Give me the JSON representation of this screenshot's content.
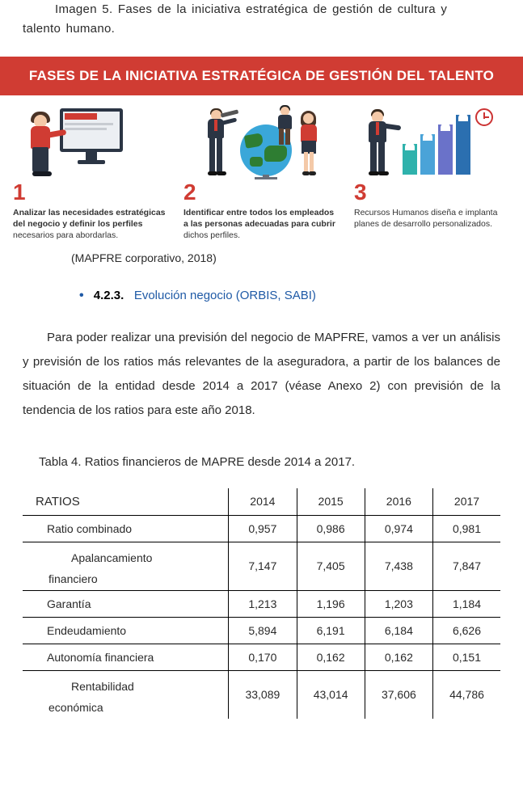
{
  "caption_top_pre": "Imagen 5. Fases de la iniciativa estratégica de gestión de cultura y",
  "caption_top_post": "talento humano.",
  "infographic": {
    "banner": "FASES DE LA INICIATIVA ESTRATÉGICA DE GESTIÓN DEL TALENTO",
    "banner_bg": "#d03c33",
    "phases": [
      {
        "num": "1",
        "bold": "Analizar las necesidades estratégicas del negocio y definir los perfiles",
        "rest": " necesarios para abordarlas."
      },
      {
        "num": "2",
        "bold": "Identificar entre todos los empleados a las personas adecuadas para cubrir",
        "rest": " dichos perfiles."
      },
      {
        "num": "3",
        "bold": "",
        "rest": "Recursos Humanos diseña e implanta planes de desarrollo personalizados."
      }
    ],
    "chart_colors": [
      "#2fb2ac",
      "#4aa3d8",
      "#6a72c9",
      "#2b6fb0"
    ],
    "globe_color": "#3aa7d9",
    "accent": "#d03c33"
  },
  "source": "(MAPFRE corporativo, 2018)",
  "section": {
    "num": "4.2.3.",
    "title": "Evolución negocio (ORBIS, SABI)"
  },
  "paragraph": "Para poder realizar una previsión del negocio de MAPFRE, vamos a ver un análisis y previsión de los ratios más relevantes de la aseguradora, a partir de los balances de situación de la entidad desde 2014 a 2017 (véase Anexo 2) con previsión de la tendencia de los ratios para este año 2018.",
  "table": {
    "title": "Tabla 4. Ratios financieros de MAPRE desde 2014 a 2017.",
    "header": [
      "RATIOS",
      "2014",
      "2015",
      "2016",
      "2017"
    ],
    "rows": [
      {
        "name": "Ratio combinado",
        "v": [
          "0,957",
          "0,986",
          "0,974",
          "0,981"
        ]
      },
      {
        "name": "Apalancamiento financiero",
        "twoLine": [
          "Apalancamiento",
          "financiero"
        ],
        "v": [
          "7,147",
          "7,405",
          "7,438",
          "7,847"
        ]
      },
      {
        "name": "Garantía",
        "v": [
          "1,213",
          "1,196",
          "1,203",
          "1,184"
        ]
      },
      {
        "name": "Endeudamiento",
        "v": [
          "5,894",
          "6,191",
          "6,184",
          "6,626"
        ]
      },
      {
        "name": "Autonomía financiera",
        "v": [
          "0,170",
          "0,162",
          "0,162",
          "0,151"
        ]
      },
      {
        "name": "Rentabilidad económica",
        "twoLine": [
          "Rentabilidad",
          "económica"
        ],
        "v": [
          "33,089",
          "43,014",
          "37,606",
          "44,786"
        ],
        "last": true
      }
    ]
  }
}
